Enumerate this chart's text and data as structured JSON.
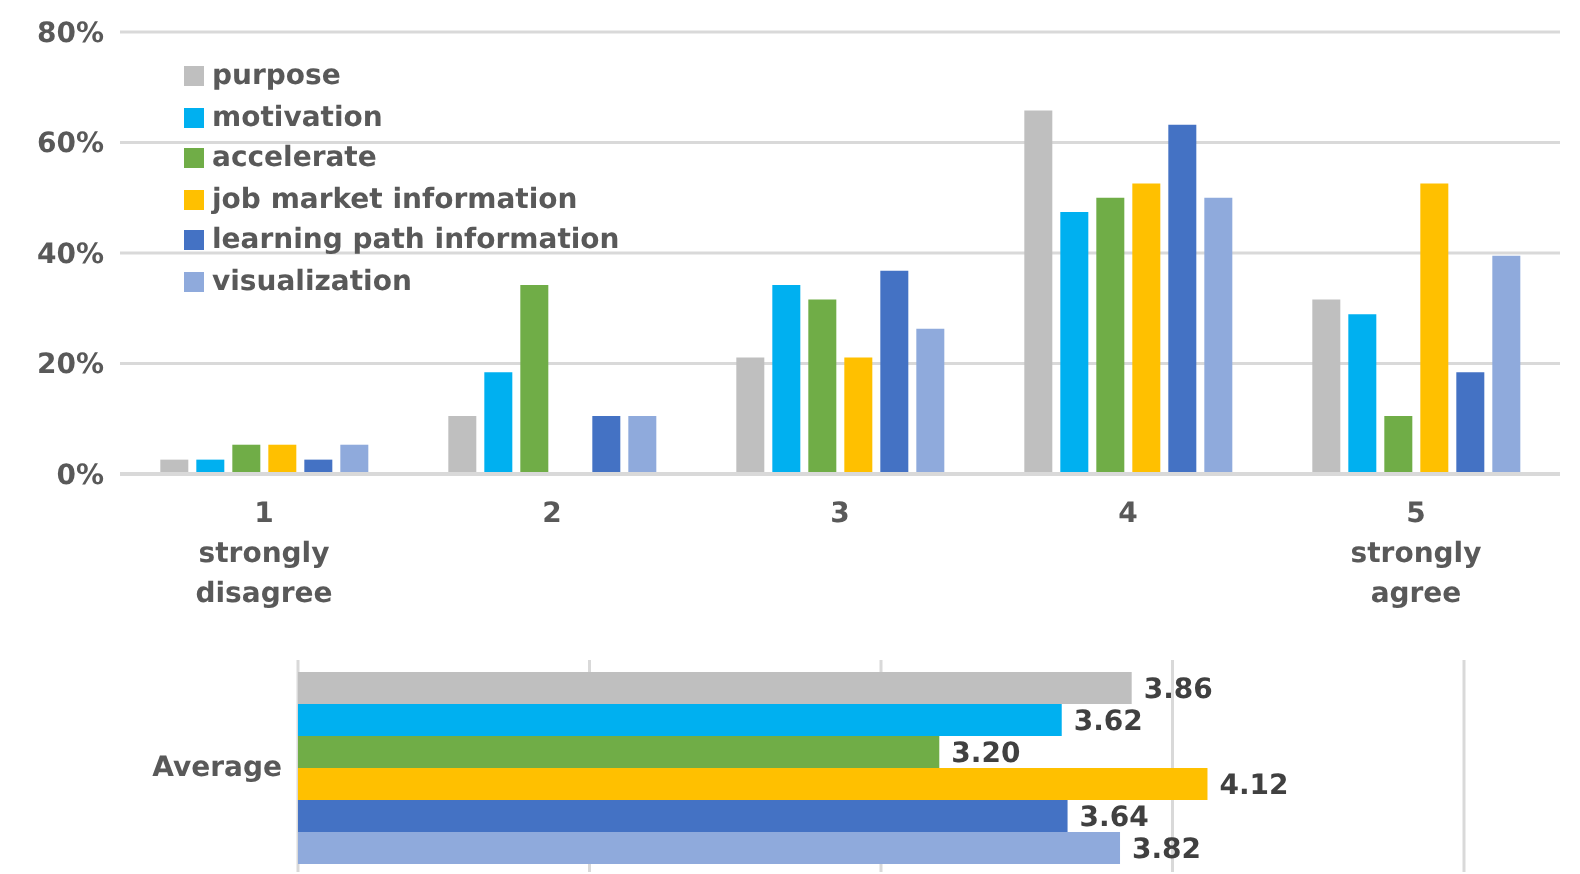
{
  "chart_data": [
    {
      "type": "bar",
      "categories": [
        "1\nstrongly\ndisagree",
        "2",
        "3",
        "4",
        "5\nstrongly\nagree"
      ],
      "series": [
        {
          "name": "purpose",
          "color": "#bfbfbf",
          "values": [
            2.6,
            10.5,
            21.1,
            65.8,
            31.6
          ]
        },
        {
          "name": "motivation",
          "color": "#00b0f0",
          "values": [
            2.6,
            18.4,
            34.2,
            47.4,
            28.9
          ]
        },
        {
          "name": "accelerate",
          "color": "#70ad47",
          "values": [
            5.3,
            34.2,
            31.6,
            50,
            10.5
          ]
        },
        {
          "name": "job market information",
          "color": "#ffc000",
          "values": [
            5.3,
            0,
            21.1,
            52.6,
            52.6
          ]
        },
        {
          "name": "learning path information",
          "color": "#4472c4",
          "values": [
            2.6,
            10.5,
            36.8,
            63.2,
            18.4
          ]
        },
        {
          "name": "visualization",
          "color": "#8faadc",
          "values": [
            5.3,
            10.5,
            26.3,
            50,
            39.5
          ]
        }
      ],
      "ylim": [
        0,
        80
      ],
      "yticks": [
        {
          "value": 0,
          "label": "0%"
        },
        {
          "value": 20,
          "label": "20%"
        },
        {
          "value": 40,
          "label": "40%"
        },
        {
          "value": 60,
          "label": "60%"
        },
        {
          "value": 80,
          "label": "80%"
        }
      ],
      "grid": "y",
      "legend": "top left"
    },
    {
      "type": "bar",
      "orientation": "horizontal",
      "categories": [
        "Average"
      ],
      "series": [
        {
          "color": "#bfbfbf",
          "values": [
            3.86
          ],
          "value_labels": [
            "3.86"
          ]
        },
        {
          "color": "#00b0f0",
          "values": [
            3.62
          ],
          "value_labels": [
            "3.62"
          ]
        },
        {
          "color": "#70ad47",
          "values": [
            3.2
          ],
          "value_labels": [
            "3.20"
          ]
        },
        {
          "color": "#ffc000",
          "values": [
            4.12
          ],
          "value_labels": [
            "4.12"
          ]
        },
        {
          "color": "#4472c4",
          "values": [
            3.64
          ],
          "value_labels": [
            "3.64"
          ]
        },
        {
          "color": "#8faadc",
          "values": [
            3.82
          ],
          "value_labels": [
            "3.82"
          ]
        }
      ],
      "xlim": [
        1,
        5
      ],
      "xticks": [
        {
          "value": 1,
          "label": null
        },
        {
          "value": 2,
          "label": null
        },
        {
          "value": 3,
          "label": null
        },
        {
          "value": 4,
          "label": null
        },
        {
          "value": 5,
          "label": null
        }
      ],
      "grid": "x",
      "tick_labels": "y"
    }
  ]
}
